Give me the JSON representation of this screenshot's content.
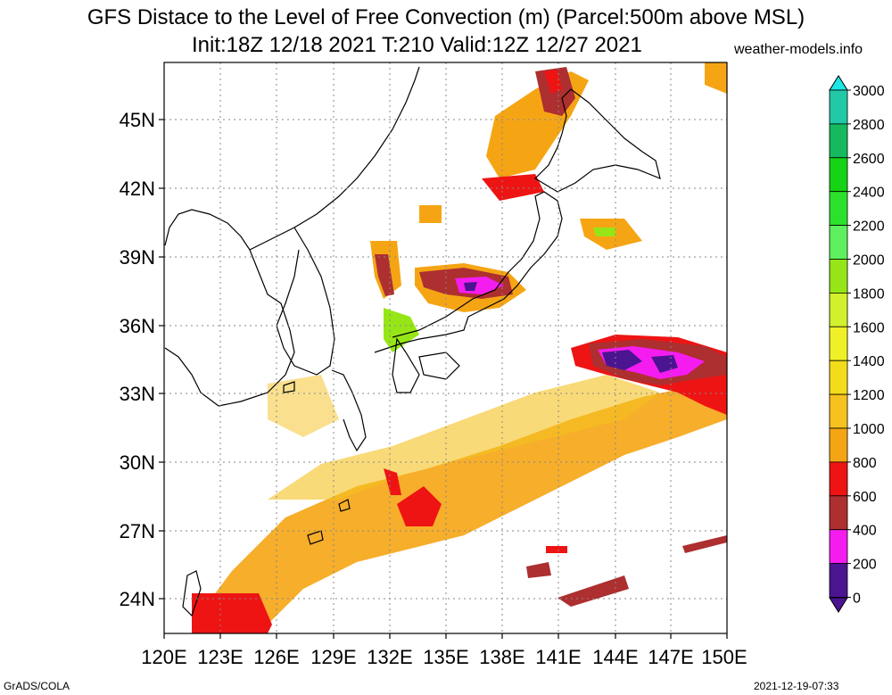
{
  "header": {
    "title": "GFS Distace to the Level of Free Convection (m) (Parcel:500m above MSL)",
    "subtitle": "Init:18Z 12/18 2021 T:210 Valid:12Z 12/27 2021",
    "site": "weather-models.info"
  },
  "footer": {
    "left": "GrADS/COLA",
    "right": "2021-12-19-07:33"
  },
  "map": {
    "lon_labels": [
      "120E",
      "123E",
      "126E",
      "129E",
      "132E",
      "135E",
      "138E",
      "141E",
      "144E",
      "147E",
      "150E"
    ],
    "lat_labels": [
      "45N",
      "42N",
      "39N",
      "36N",
      "33N",
      "30N",
      "27N",
      "24N"
    ],
    "lon_range": [
      120,
      150
    ],
    "lat_range": [
      22.5,
      47.5
    ],
    "grid": true
  },
  "colorbar": {
    "labels": [
      "3000",
      "2800",
      "2600",
      "2400",
      "2200",
      "2000",
      "1800",
      "1600",
      "1400",
      "1200",
      "1000",
      "800",
      "600",
      "400",
      "200",
      "0"
    ],
    "colors": [
      "#1fe6e6",
      "#22c9a6",
      "#16b95e",
      "#15d315",
      "#2ce12c",
      "#5ef05e",
      "#96e617",
      "#d2f02c",
      "#f0f028",
      "#f3dc1a",
      "#f5c21e",
      "#f5a514",
      "#ee1414",
      "#ad2f2f",
      "#f51cf0",
      "#4b1491"
    ]
  }
}
